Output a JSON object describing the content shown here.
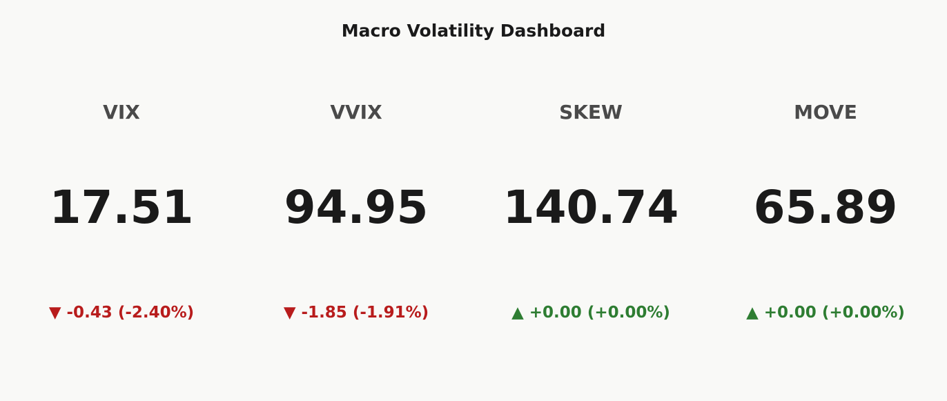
{
  "header": {
    "title": "Macro Volatility Dashboard"
  },
  "cards": [
    {
      "label": "VIX",
      "value": "17.51",
      "arrow": "▼",
      "change": "-0.43",
      "change_pct": "(-2.40%)",
      "color": "#b81c1c"
    },
    {
      "label": "VVIX",
      "value": "94.95",
      "arrow": "▼",
      "change": "-1.85",
      "change_pct": "(-1.91%)",
      "color": "#b81c1c"
    },
    {
      "label": "SKEW",
      "value": "140.74",
      "arrow": "▲",
      "change": "+0.00",
      "change_pct": "(+0.00%)",
      "color": "#2e7d32"
    },
    {
      "label": "MOVE",
      "value": "65.89",
      "arrow": "▲",
      "change": "+0.00",
      "change_pct": "(+0.00%)",
      "color": "#2e7d32"
    }
  ]
}
